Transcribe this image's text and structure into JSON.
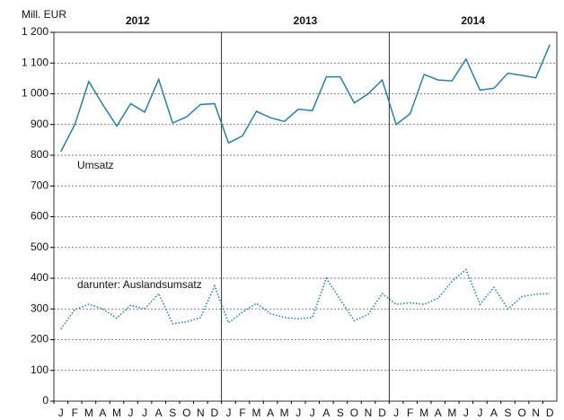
{
  "chart_data": {
    "type": "line",
    "y_label": "Mill. EUR",
    "groups": [
      "2012",
      "2013",
      "2014"
    ],
    "annotations": [
      "Umsatz",
      "darunter: Auslandsumsatz"
    ],
    "categories": [
      "J",
      "F",
      "M",
      "A",
      "M",
      "J",
      "J",
      "A",
      "S",
      "O",
      "N",
      "D",
      "J",
      "F",
      "M",
      "A",
      "M",
      "J",
      "J",
      "A",
      "S",
      "O",
      "N",
      "D",
      "J",
      "F",
      "M",
      "A",
      "M",
      "J",
      "J",
      "A",
      "S",
      "O",
      "N",
      "D"
    ],
    "series": [
      {
        "name": "Umsatz",
        "color": "#2b7ea6",
        "style": "solid",
        "values": [
          812,
          900,
          1040,
          965,
          895,
          968,
          940,
          1047,
          905,
          925,
          965,
          968,
          840,
          863,
          943,
          922,
          910,
          950,
          945,
          1055,
          1055,
          970,
          1000,
          1045,
          900,
          935,
          1063,
          1045,
          1042,
          1113,
          1012,
          1018,
          1067,
          1060,
          1052,
          1160
        ]
      },
      {
        "name": "darunter: Auslandsumsatz",
        "color": "#2b7ea6",
        "style": "dotted",
        "values": [
          235,
          298,
          315,
          300,
          270,
          312,
          300,
          350,
          252,
          258,
          272,
          375,
          255,
          290,
          318,
          285,
          272,
          268,
          272,
          400,
          330,
          262,
          282,
          350,
          315,
          320,
          315,
          335,
          390,
          428,
          315,
          370,
          300,
          340,
          348,
          350
        ]
      }
    ],
    "ylim": [
      0,
      1200
    ],
    "yticks": [
      0,
      100,
      200,
      300,
      400,
      500,
      600,
      700,
      800,
      900,
      {
        "value": 1000,
        "label": "1 000"
      },
      {
        "value": 1100,
        "label": "1 100"
      },
      {
        "value": 1200,
        "label": "1 200"
      }
    ],
    "grid": true
  }
}
